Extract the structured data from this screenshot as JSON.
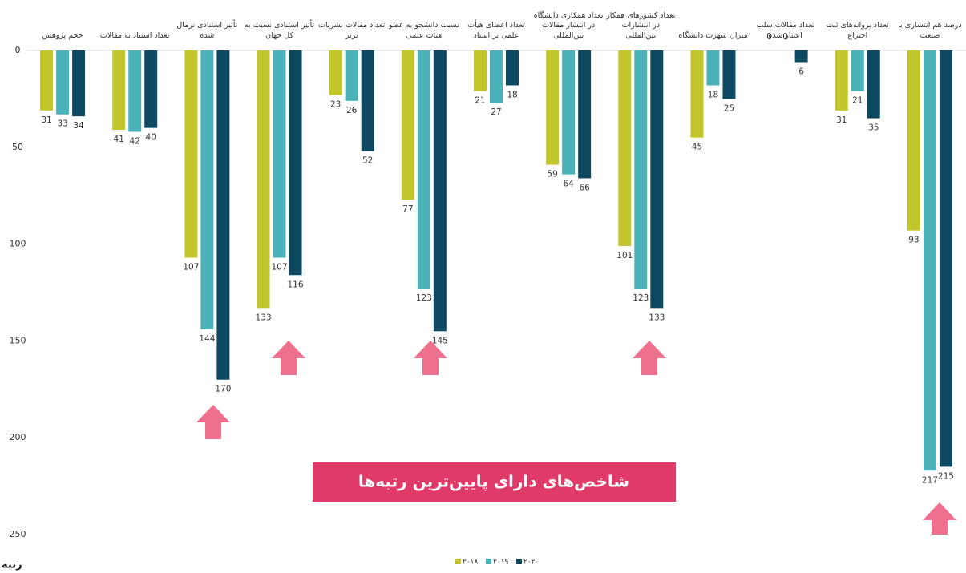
{
  "chart_data": {
    "type": "bar",
    "categories": [
      "حجم پژوهش",
      "تعداد استناد به مقالات",
      "تأثیر استنادی نرمال شده",
      "تأثیر استنادی نسبت به کل جهان",
      "تعداد مقالات نشریات برتر",
      "نسبت دانشجو به عضو هیأت علمی",
      "تعداد اعضای هیأت علمی بر استاد",
      "تعداد همکاری دانشگاه در انتشار مقالات بین‌المللی",
      "تعداد کشورهای همکار در انتشارات بین‌المللی",
      "میزان شهرت دانشگاه",
      "تعداد مقالات سلب اعتبار شده",
      "تعداد پروانه‌های ثبت اختراع",
      "درصد هم انتشاری با صنعت"
    ],
    "series": [
      {
        "name": "۲۰۱۸",
        "color": "#c3c62a",
        "values": [
          31,
          41,
          107,
          133,
          23,
          77,
          21,
          59,
          101,
          45,
          0,
          31,
          93
        ]
      },
      {
        "name": "۲۰۱۹",
        "color": "#4ab2b8",
        "values": [
          33,
          42,
          144,
          107,
          26,
          123,
          27,
          64,
          123,
          18,
          0,
          21,
          217
        ]
      },
      {
        "name": "۲۰۲۰",
        "color": "#0d4a61",
        "values": [
          34,
          40,
          170,
          116,
          52,
          145,
          18,
          66,
          133,
          25,
          6,
          35,
          215
        ]
      }
    ],
    "ylabel": "رتبه",
    "ylim": [
      0,
      250
    ],
    "yticks": [
      0,
      50,
      100,
      150,
      200,
      250
    ],
    "y_inverted": true,
    "grid": false,
    "legend": "bottom",
    "annotation": "شاخص‌های دارای پایین‌ترین رتبه‌ها"
  }
}
